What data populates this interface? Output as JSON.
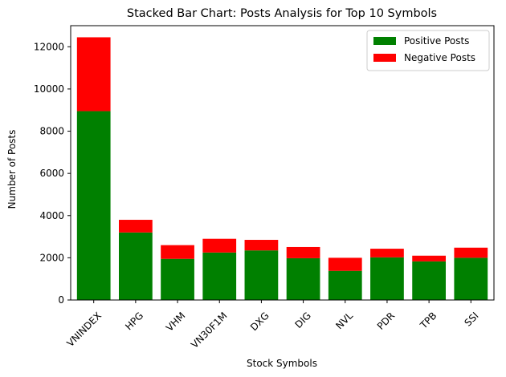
{
  "chart_data": {
    "type": "bar",
    "stacked": true,
    "title": "Stacked Bar Chart: Posts Analysis for Top 10 Symbols",
    "xlabel": "Stock Symbols",
    "ylabel": "Number of Posts",
    "ylim": [
      0,
      13000
    ],
    "yticks": [
      0,
      2000,
      4000,
      6000,
      8000,
      10000,
      12000
    ],
    "categories": [
      "VNINDEX",
      "HPG",
      "VHM",
      "VN30F1M",
      "DXG",
      "DIG",
      "NVL",
      "PDR",
      "TPB",
      "SSI"
    ],
    "series": [
      {
        "name": "Positive Posts",
        "color": "#008000",
        "values": [
          8950,
          3200,
          1950,
          2250,
          2350,
          1980,
          1380,
          2020,
          1830,
          2000
        ]
      },
      {
        "name": "Negative Posts",
        "color": "#ff0000",
        "values": [
          3500,
          600,
          650,
          650,
          500,
          530,
          620,
          410,
          270,
          480
        ]
      }
    ],
    "grid": false,
    "legend_position": "top-right"
  }
}
